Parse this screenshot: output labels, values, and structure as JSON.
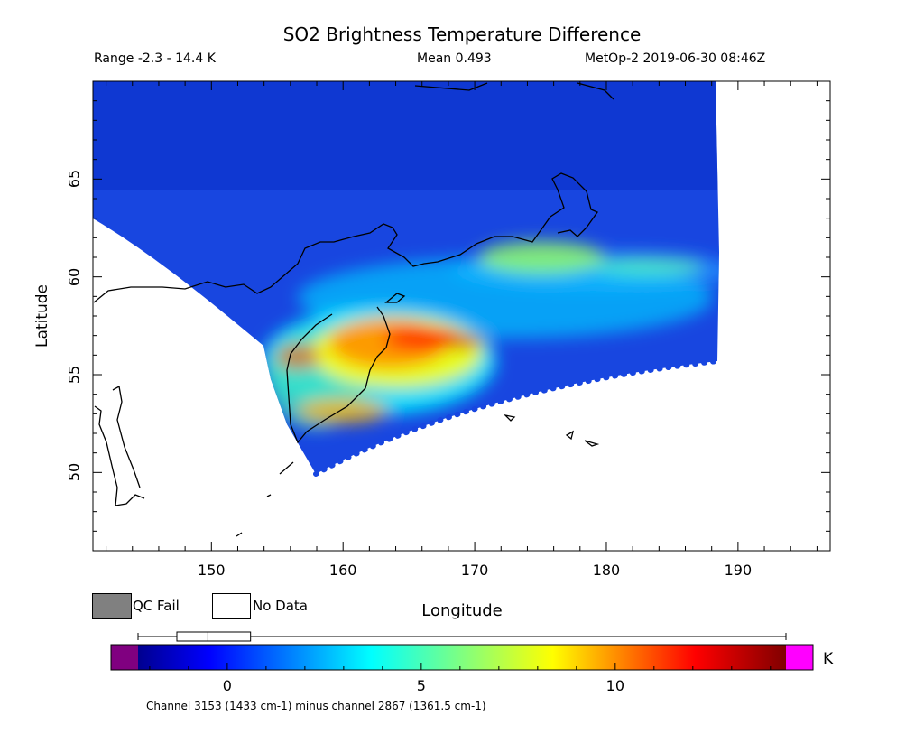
{
  "title": "SO2 Brightness Temperature Difference",
  "info": {
    "range": "Range -2.3 - 14.4 K",
    "mean": "Mean 0.493",
    "satellite_time": "MetOp-2 2019-06-30 08:46Z"
  },
  "map": {
    "xlabel": "Longitude",
    "ylabel": "Latitude",
    "lon_range": [
      141,
      197
    ],
    "lat_range": [
      46,
      70
    ],
    "x_ticks": [
      "150",
      "160",
      "170",
      "180",
      "190"
    ],
    "y_ticks": [
      "50",
      "55",
      "60",
      "65"
    ],
    "plume_color_scale": "jet",
    "background_value_color": "#1846e0",
    "land_color": "#ffffff",
    "coastline_color": "#000000"
  },
  "legend": {
    "qc_fail": {
      "label": "QC Fail",
      "color": "#808080"
    },
    "no_data": {
      "label": "No Data",
      "color": "#ffffff"
    }
  },
  "colorbar": {
    "min": -2.3,
    "max": 14.4,
    "ticks": [
      "0",
      "5",
      "10"
    ],
    "tick_values": [
      0,
      5,
      10
    ],
    "unit": "K",
    "under_color": "#800080",
    "over_color": "#ff00ff",
    "boxplot": {
      "whisker_low": -2.3,
      "q1": -1.3,
      "median": -0.5,
      "q3": 0.6,
      "whisker_high": 14.4
    }
  },
  "footnote": "Channel 3153 (1433 cm-1) minus channel 2867 (1361.5 cm-1)"
}
